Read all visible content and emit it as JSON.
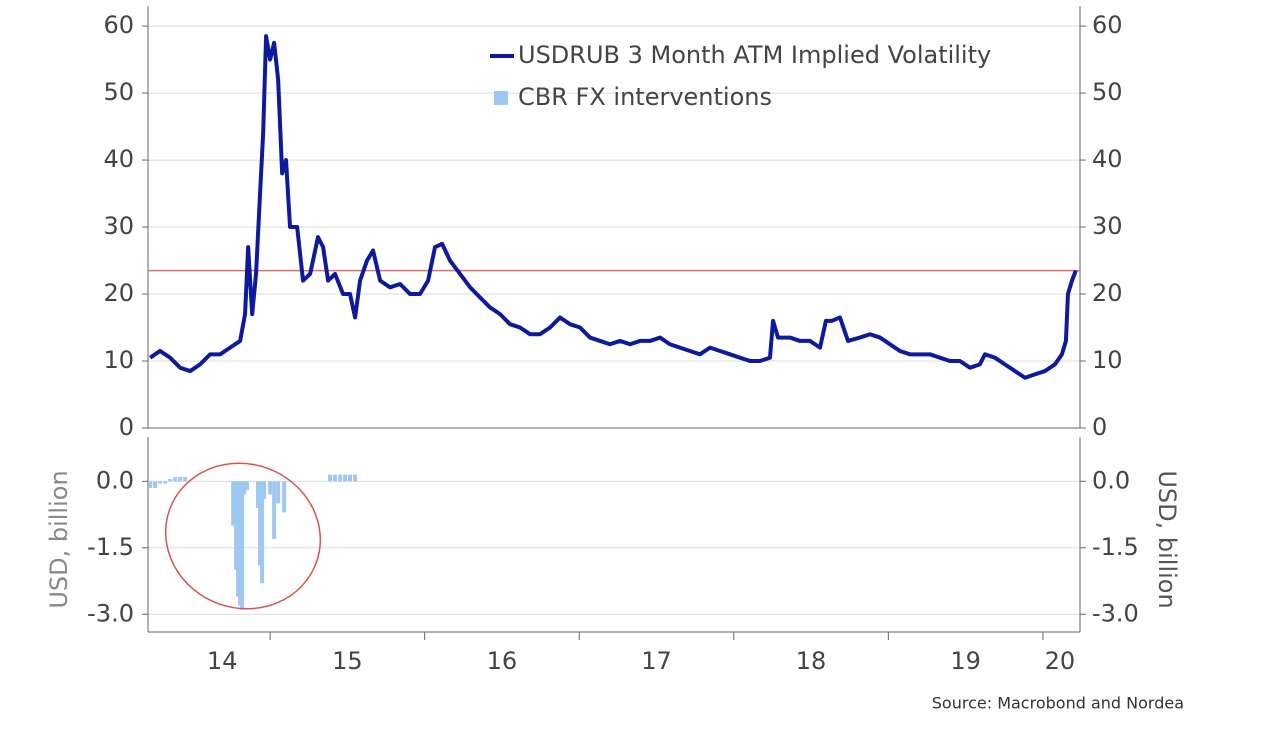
{
  "chart_data": [
    {
      "type": "line",
      "ylim": [
        0,
        63
      ],
      "yticks": [
        0,
        10,
        20,
        30,
        40,
        50,
        60
      ],
      "y2lim": [
        0,
        63
      ],
      "y2ticks": [
        0,
        10,
        20,
        30,
        40,
        50,
        60
      ],
      "grid": true,
      "legend": "top-right",
      "hline": {
        "value": 23.5,
        "color": "#e07070"
      },
      "series": [
        {
          "name": "USDRUB 3 Month ATM Implied Volatility",
          "color": "#0d1a9c",
          "x": [
            2014.224,
            2014.288,
            2014.353,
            2014.418,
            2014.483,
            2014.547,
            2014.612,
            2014.677,
            2014.741,
            2014.806,
            2014.838,
            2014.858,
            2014.884,
            2014.909,
            2014.935,
            2014.955,
            2014.974,
            2015.0,
            2015.026,
            2015.052,
            2015.078,
            2015.103,
            2015.129,
            2015.175,
            2015.213,
            2015.259,
            2015.31,
            2015.343,
            2015.375,
            2015.42,
            2015.472,
            2015.517,
            2015.55,
            2015.582,
            2015.627,
            2015.666,
            2015.712,
            2015.776,
            2015.841,
            2015.906,
            2015.97,
            2016.022,
            2016.067,
            2016.113,
            2016.164,
            2016.229,
            2016.294,
            2016.358,
            2016.423,
            2016.488,
            2016.552,
            2016.617,
            2016.682,
            2016.746,
            2016.811,
            2016.876,
            2016.94,
            2017.005,
            2017.07,
            2017.135,
            2017.199,
            2017.264,
            2017.329,
            2017.393,
            2017.458,
            2017.523,
            2017.587,
            2017.652,
            2017.717,
            2017.781,
            2017.846,
            2017.911,
            2017.975,
            2018.04,
            2018.105,
            2018.169,
            2018.234,
            2018.254,
            2018.286,
            2018.364,
            2018.428,
            2018.493,
            2018.558,
            2018.596,
            2018.635,
            2018.687,
            2018.739,
            2018.816,
            2018.881,
            2018.946,
            2019.01,
            2019.075,
            2019.14,
            2019.204,
            2019.269,
            2019.334,
            2019.398,
            2019.463,
            2019.528,
            2019.592,
            2019.625,
            2019.69,
            2019.754,
            2019.819,
            2019.884,
            2019.948,
            2020.013,
            2020.078,
            2020.123,
            2020.149,
            2020.162,
            2020.188,
            2020.213
          ],
          "values": [
            10.5,
            11.5,
            10.5,
            9,
            8.5,
            9.5,
            11,
            11,
            12,
            13,
            17,
            27,
            17,
            23,
            35,
            44,
            58.5,
            55,
            57.5,
            52,
            38,
            40,
            30,
            30,
            22,
            23,
            28.5,
            27,
            22,
            23,
            20,
            20,
            16.5,
            22,
            25,
            26.5,
            22,
            21,
            21.5,
            20,
            20,
            22,
            27,
            27.5,
            25,
            23,
            21,
            19.5,
            18,
            17,
            15.5,
            15,
            14,
            14,
            15,
            16.5,
            15.5,
            15,
            13.5,
            13,
            12.5,
            13,
            12.5,
            13,
            13,
            13.5,
            12.5,
            12,
            11.5,
            11,
            12,
            11.5,
            11,
            10.5,
            10,
            10,
            10.5,
            16,
            13.5,
            13.5,
            13,
            13,
            12,
            16,
            16,
            16.5,
            13,
            13.5,
            14,
            13.5,
            12.5,
            11.5,
            11,
            11,
            11,
            10.5,
            10,
            10,
            9,
            9.5,
            11,
            10.5,
            9.5,
            8.5,
            7.5,
            8,
            8.5,
            9.5,
            11,
            13,
            20,
            22,
            23.5
          ]
        }
      ]
    },
    {
      "type": "bar",
      "ylabel": "USD, billion",
      "y2label": "USD, billion",
      "ylim": [
        -3.4,
        1.0
      ],
      "yticks": [
        {
          "value": 0,
          "label": "0.0"
        },
        {
          "value": -1.5,
          "label": "-1.5"
        },
        {
          "value": -3,
          "label": "-3.0"
        }
      ],
      "y2lim": [
        -3.4,
        1.0
      ],
      "y2ticks": [
        {
          "value": 0,
          "label": "0.0"
        },
        {
          "value": -1.5,
          "label": "-1.5"
        },
        {
          "value": -3,
          "label": "-3.0"
        }
      ],
      "xlim": [
        2014.21,
        2020.24
      ],
      "xticks": [
        {
          "value": 2014.69,
          "label": "14"
        },
        {
          "value": 2015.5,
          "label": "15"
        },
        {
          "value": 2016.5,
          "label": "16"
        },
        {
          "value": 2017.5,
          "label": "17"
        },
        {
          "value": 2018.5,
          "label": "18"
        },
        {
          "value": 2019.5,
          "label": "19"
        },
        {
          "value": 2020.11,
          "label": "20"
        }
      ],
      "xtick_marks": [
        2015,
        2016,
        2017,
        2018,
        2019,
        2020
      ],
      "grid": true,
      "series": [
        {
          "name": "CBR FX interventions",
          "color": "#9ec8f0",
          "x": [
            2014.224,
            2014.256,
            2014.288,
            2014.321,
            2014.353,
            2014.386,
            2014.418,
            2014.45,
            2014.761,
            2014.78,
            2014.793,
            2014.806,
            2014.819,
            2014.832,
            2014.851,
            2014.922,
            2014.935,
            2014.948,
            2014.961,
            2015.0,
            2015.026,
            2015.052,
            2015.091,
            2015.388,
            2015.42,
            2015.453,
            2015.485,
            2015.517,
            2015.55
          ],
          "values": [
            -0.15,
            -0.15,
            -0.05,
            -0.05,
            0.05,
            0.1,
            0.1,
            0.1,
            -1.0,
            -2.0,
            -2.6,
            -2.8,
            -2.9,
            -0.3,
            -0.2,
            -0.6,
            -1.9,
            -2.3,
            -0.4,
            -0.3,
            -1.3,
            -0.5,
            -0.7,
            0.15,
            0.15,
            0.15,
            0.15,
            0.15,
            0.15
          ]
        }
      ]
    }
  ],
  "source": "Source: Macrobond and Nordea"
}
